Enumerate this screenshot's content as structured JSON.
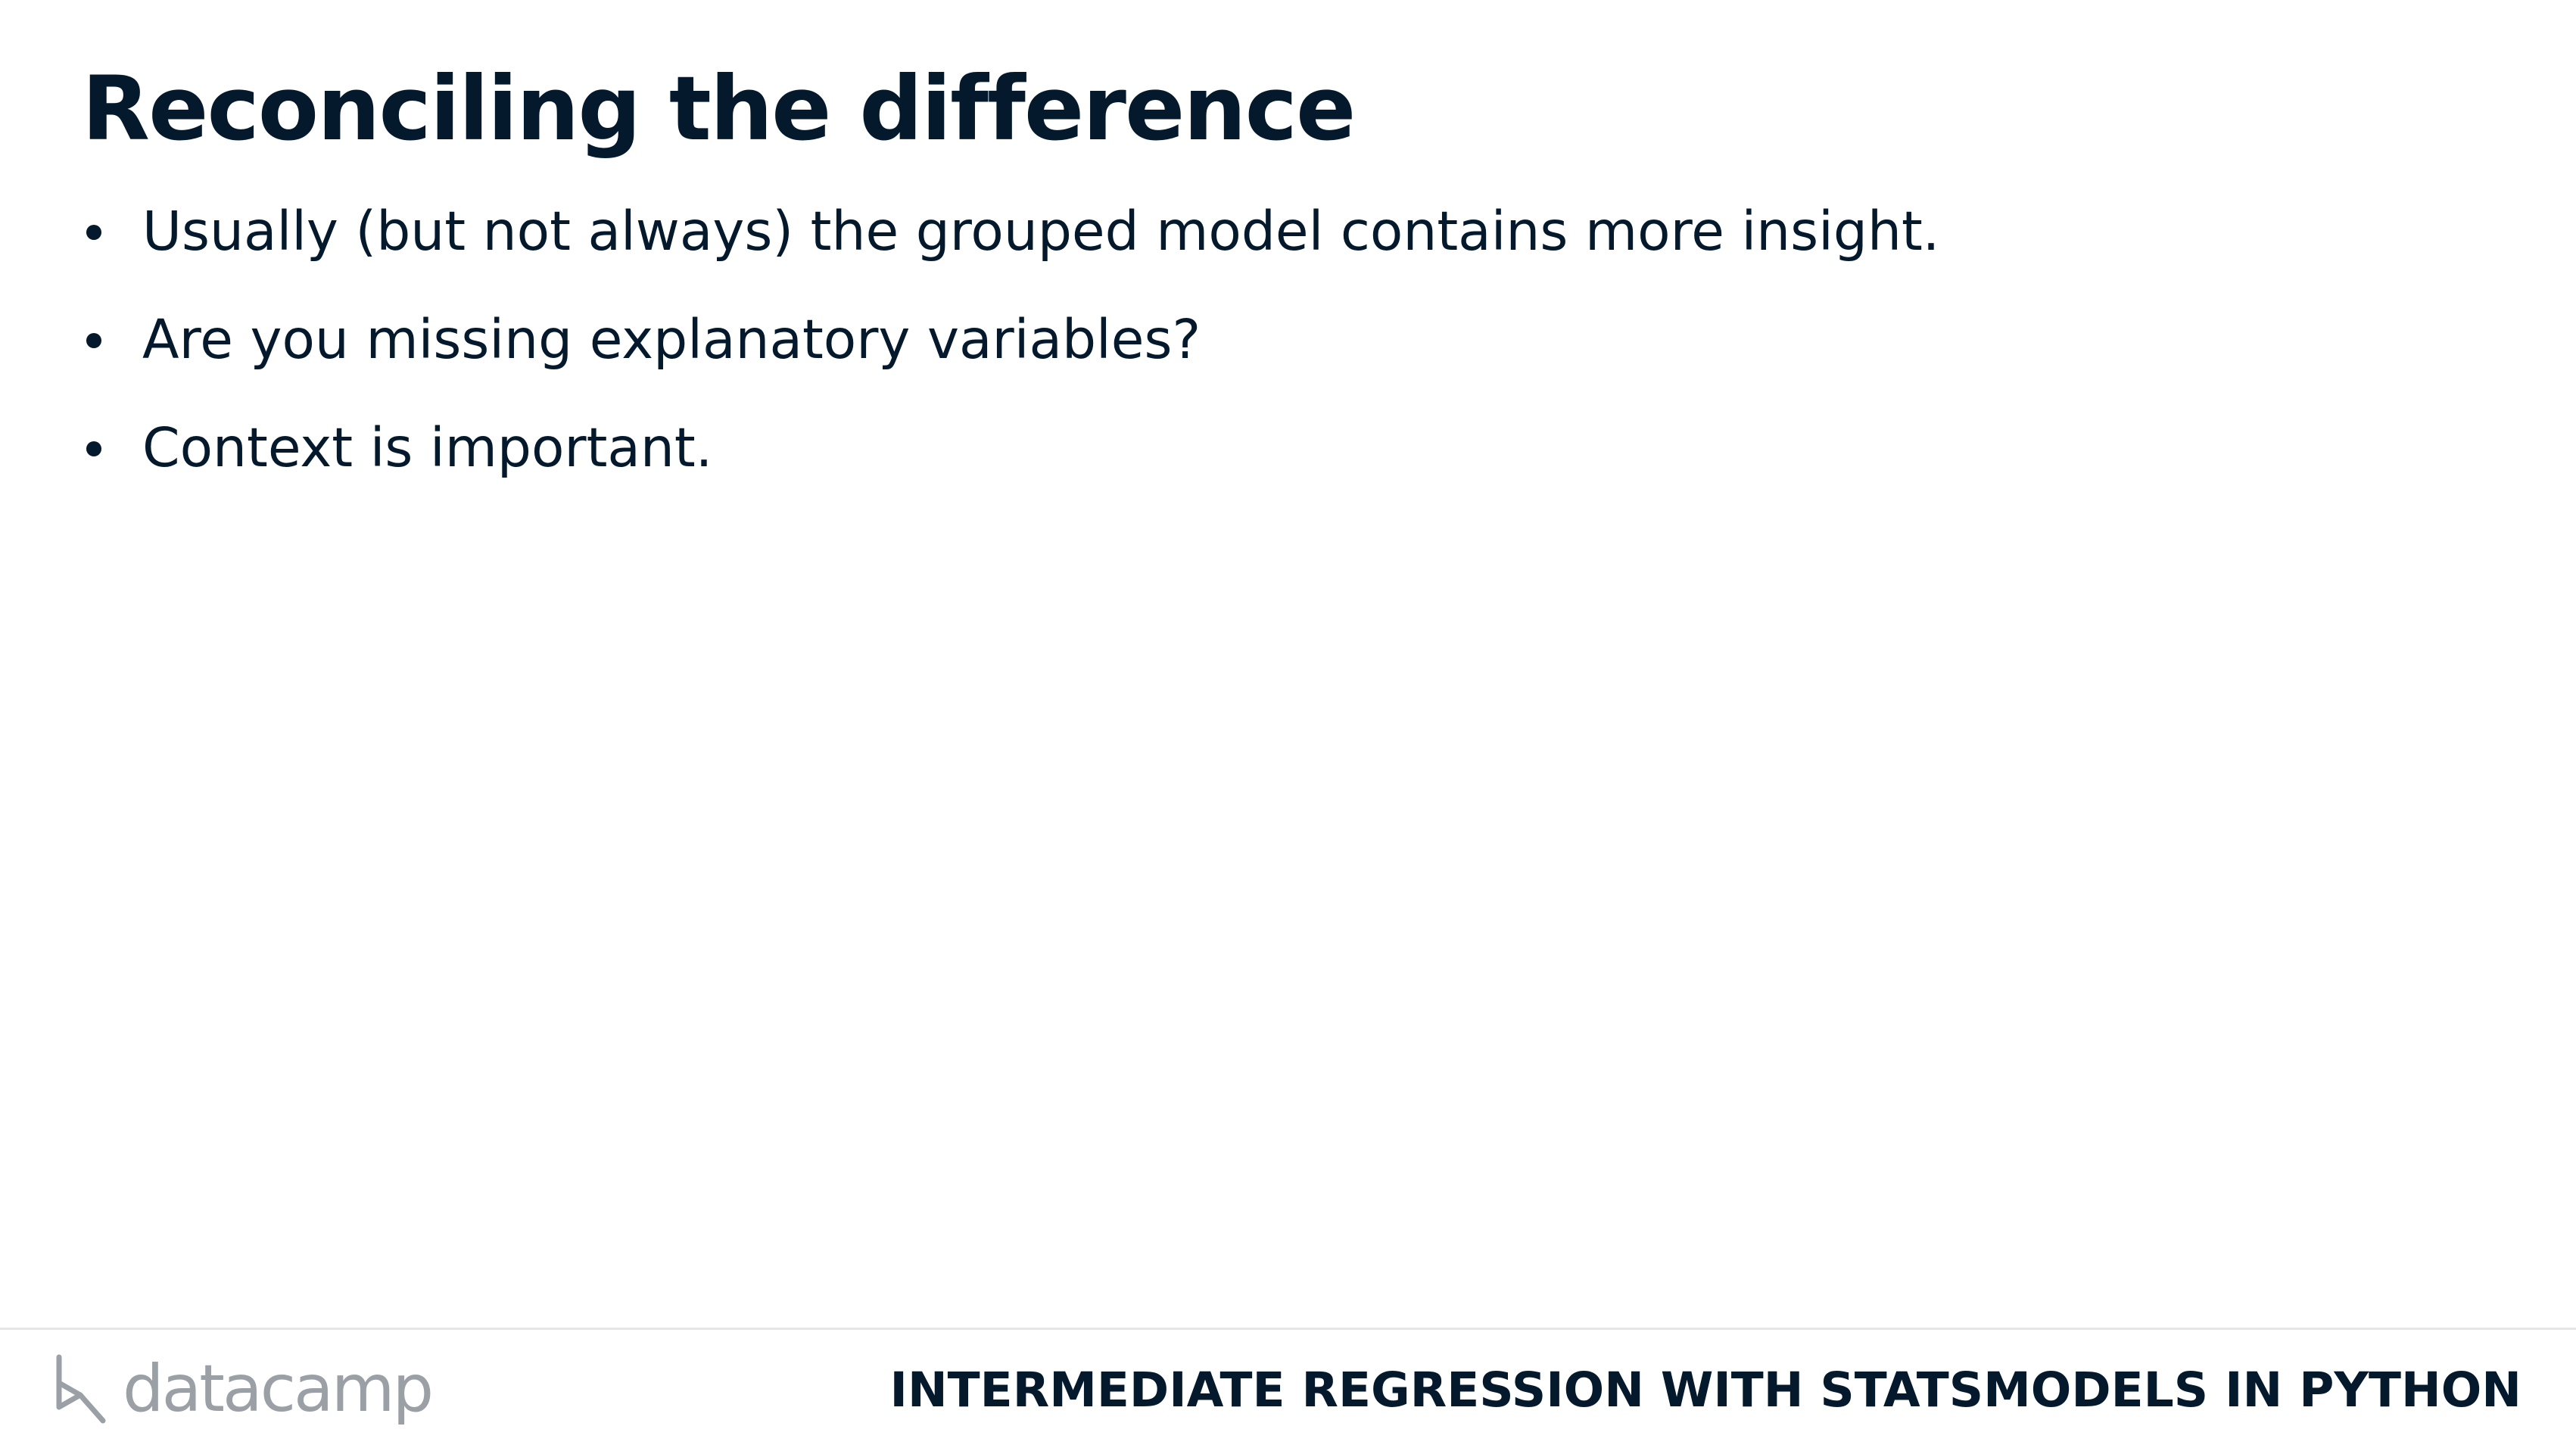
{
  "slide": {
    "title": "Reconciling the difference",
    "bullets": [
      "Usually (but not always) the grouped model contains more insight.",
      "Are you missing explanatory variables?",
      "Context is important."
    ]
  },
  "footer": {
    "logo_text": "datacamp",
    "course_name": "INTERMEDIATE REGRESSION WITH STATSMODELS IN PYTHON"
  },
  "colors": {
    "text": "#05192d",
    "logo_gray": "#9aa0a6",
    "divider": "#e6e6e6"
  }
}
